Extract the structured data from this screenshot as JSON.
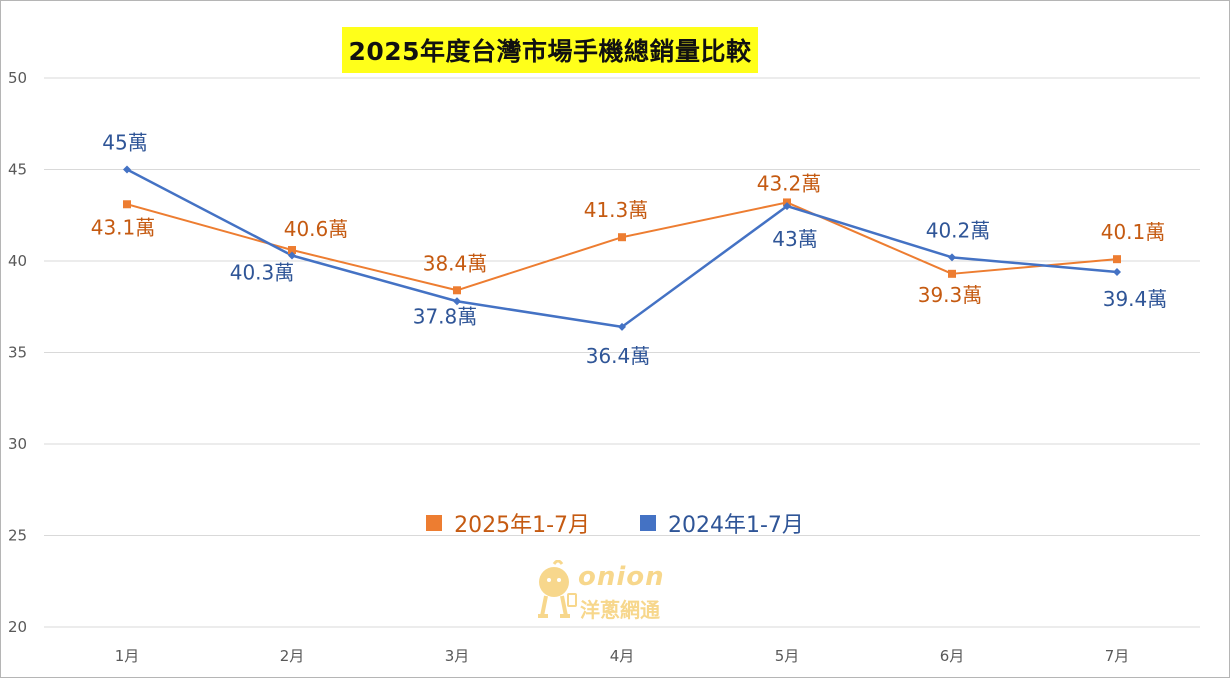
{
  "title": "2025年度台灣市場手機總銷量比較",
  "watermark": {
    "brand": "onion",
    "name": "洋蔥網通",
    "icon": "onion-mascot-icon"
  },
  "chart_data": {
    "type": "line",
    "title": "2025年度台灣市場手機總銷量比較",
    "xlabel": "",
    "ylabel": "",
    "categories": [
      "1月",
      "2月",
      "3月",
      "4月",
      "5月",
      "6月",
      "7月"
    ],
    "ylim": [
      20,
      50
    ],
    "yticks": [
      "20",
      "25",
      "30",
      "35",
      "40",
      "45",
      "50"
    ],
    "grid": "horizontal",
    "legend_position": "bottom-center",
    "series": [
      {
        "name": "2025年1-7月",
        "color": "#ed7d31",
        "marker": "square",
        "values": [
          43.1,
          40.6,
          38.4,
          41.3,
          43.2,
          39.3,
          40.1
        ],
        "labels": [
          "43.1萬",
          "40.6萬",
          "38.4萬",
          "41.3萬",
          "43.2萬",
          "39.3萬",
          "40.1萬"
        ],
        "label_color": "#c55a11"
      },
      {
        "name": "2024年1-7月",
        "color": "#4472c4",
        "marker": "diamond",
        "values": [
          45,
          40.3,
          37.8,
          36.4,
          43,
          40.2,
          39.4
        ],
        "labels": [
          "45萬",
          "40.3萬",
          "37.8萬",
          "36.4萬",
          "43萬",
          "40.2萬",
          "39.4萬"
        ],
        "label_color": "#2f5597"
      }
    ]
  }
}
